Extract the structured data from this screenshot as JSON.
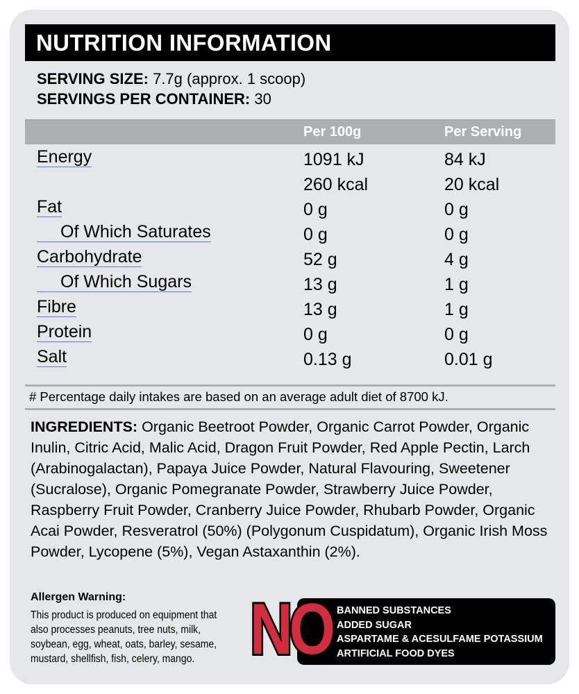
{
  "title": "NUTRITION INFORMATION",
  "serving_size": {
    "label": "SERVING SIZE:",
    "value": " 7.7g (approx. 1 scoop)"
  },
  "servings_per_container": {
    "label": "SERVINGS PER CONTAINER:",
    "value": " 30"
  },
  "table": {
    "headers": [
      "Per 100g",
      "Per Serving"
    ],
    "rows": [
      {
        "label": "Energy",
        "per100": "1091 kJ",
        "serving": "84 kJ",
        "indent": false
      },
      {
        "label": "",
        "per100": "260 kcal",
        "serving": "20 kcal",
        "indent": false
      },
      {
        "label": "Fat",
        "per100": "0 g",
        "serving": "0 g",
        "indent": false
      },
      {
        "label": "Of Which Saturates",
        "per100": "0 g",
        "serving": "0 g",
        "indent": true
      },
      {
        "label": "Carbohydrate",
        "per100": "52 g",
        "serving": "4 g",
        "indent": false
      },
      {
        "label": "Of Which Sugars",
        "per100": "13 g",
        "serving": "1 g",
        "indent": true
      },
      {
        "label": "Fibre",
        "per100": "13 g",
        "serving": "1 g",
        "indent": false
      },
      {
        "label": "Protein",
        "per100": "0 g",
        "serving": "0 g",
        "indent": false
      },
      {
        "label": "Salt",
        "per100": "0.13 g",
        "serving": "0.01 g",
        "indent": false
      }
    ]
  },
  "footnote": "# Percentage daily intakes are based on an average adult diet of 8700 kJ.",
  "ingredients": {
    "label": "INGREDIENTS:",
    "text": " Organic Beetroot Powder, Organic Carrot Powder, Organic Inulin, Citric Acid, Malic Acid, Dragon Fruit Powder, Red Apple Pectin, Larch (Arabinogalactan), Papaya Juice Powder, Natural Flavouring, Sweetener (Sucralose), Organic Pomegranate Powder, Strawberry Juice Powder, Raspberry Fruit Powder, Cranberry Juice Powder, Rhubarb Powder, Organic Acai Powder, Resveratrol (50%) (Polygonum Cuspidatum), Organic Irish Moss Powder, Lycopene (5%), Vegan Astaxanthin (2%)."
  },
  "allergen": {
    "title": "Allergen Warning:",
    "text": "This product is produced on equipment that also processes peanuts, tree nuts, milk, soybean, egg, wheat, oats, barley, sesame, mustard, shellfish, fish, celery, mango."
  },
  "no_badge": {
    "word": "NO",
    "items": [
      "BANNED SUBSTANCES",
      "ADDED SUGAR",
      "ASPARTAME & ACESULFAME POTASSIUM",
      "ARTIFICIAL FOOD DYES"
    ],
    "color": "#d12d3f"
  }
}
